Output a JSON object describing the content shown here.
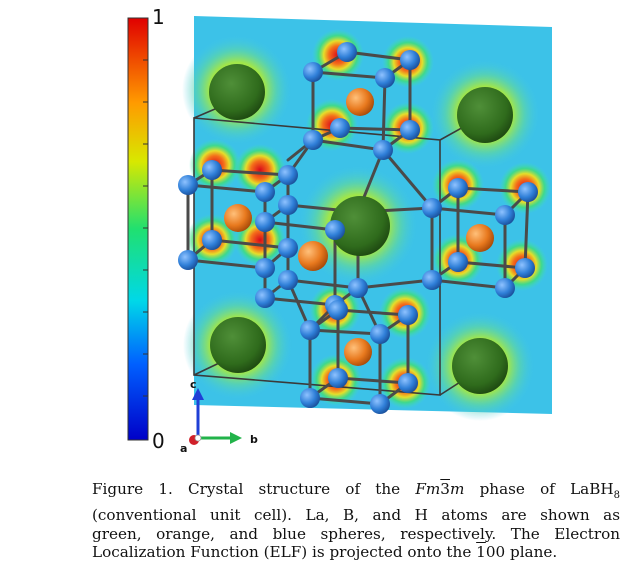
{
  "colorbar": {
    "max_label": "1",
    "min_label": "0"
  },
  "axes": {
    "a_label": "a",
    "b_label": "b",
    "c_label": "c"
  },
  "caption": {
    "figure_label": "Figure 1.",
    "line1_pre": "Crystal structure of the",
    "phase_italic1": "Fm",
    "phase_bar": "3",
    "phase_italic2": "m",
    "line1_post": "phase of LaBH",
    "line1_sub": "8",
    "line2": "(conventional unit cell).  La, B, and H atoms are shown as",
    "line3": "green, orange, and blue spheres, respectively.  The Electron",
    "line4_pre": "Localization Function (ELF) is projected onto the",
    "plane_bar": "1",
    "line4_post": "00 plane."
  },
  "colors": {
    "la": "#2f6b1c",
    "b": "#e8791e",
    "h": "#2f7fd8",
    "bond": "#4a4a4a",
    "axis_a": "#d0202a",
    "axis_b": "#22b34a",
    "axis_c": "#1f3fd6"
  }
}
